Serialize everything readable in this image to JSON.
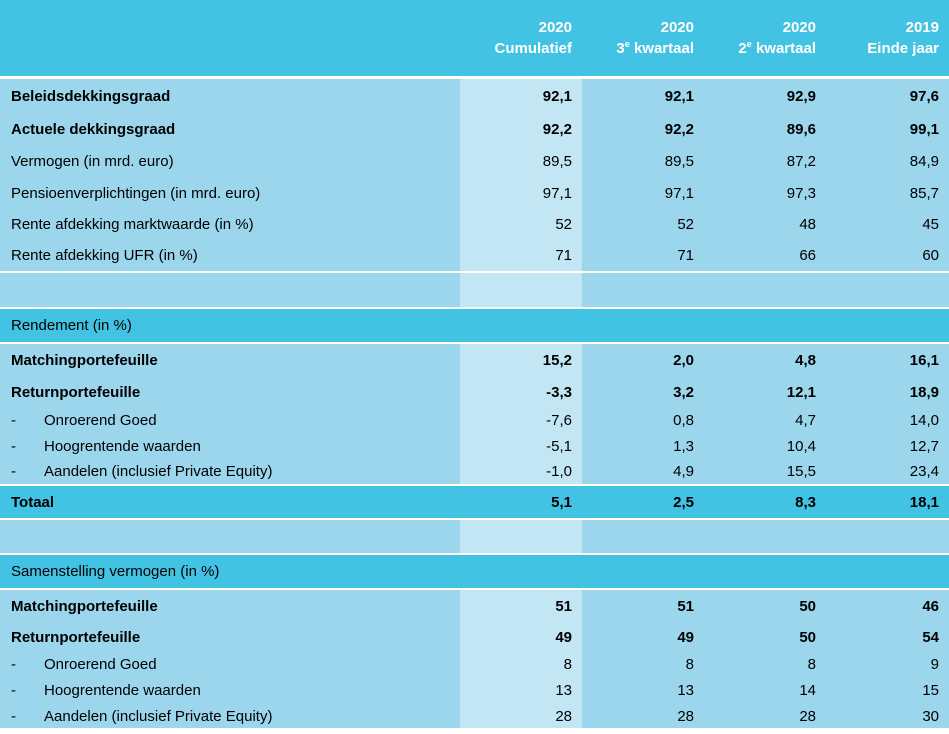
{
  "header": {
    "columns": [
      {
        "year": "2020",
        "label": "Cumulatief",
        "sup": ""
      },
      {
        "pre": "3",
        "year": "2020",
        "sup": "e",
        "label": " kwartaal"
      },
      {
        "pre": "2",
        "year": "2020",
        "sup": "e",
        "label": " kwartaal"
      },
      {
        "year": "2019",
        "label": "Einde jaar",
        "sup": ""
      }
    ]
  },
  "group1": {
    "rows": [
      {
        "label": "Beleidsdekkingsgraad",
        "values": [
          "92,1",
          "92,1",
          "92,9",
          "97,6"
        ]
      },
      {
        "label": "Actuele dekkingsgraad",
        "values": [
          "92,2",
          "92,2",
          "89,6",
          "99,1"
        ]
      },
      {
        "label": "Vermogen (in mrd. euro)",
        "values": [
          "89,5",
          "89,5",
          "87,2",
          "84,9"
        ]
      },
      {
        "label": "Pensioenverplichtingen (in mrd. euro)",
        "values": [
          "97,1",
          "97,1",
          "97,3",
          "85,7"
        ]
      },
      {
        "label": "Rente afdekking marktwaarde (in %)",
        "values": [
          "52",
          "52",
          "48",
          "45"
        ]
      },
      {
        "label": "Rente afdekking UFR (in %)",
        "values": [
          "71",
          "71",
          "66",
          "60"
        ]
      }
    ]
  },
  "rendement": {
    "title": "Rendement (in %)",
    "rows": [
      {
        "label": "Matchingportefeuille",
        "values": [
          "15,2",
          "2,0",
          "4,8",
          "16,1"
        ]
      },
      {
        "label": "Returnportefeuille",
        "values": [
          "-3,3",
          "3,2",
          "12,1",
          "18,9"
        ]
      },
      {
        "dash": "-",
        "label": "Onroerend Goed",
        "values": [
          "-7,6",
          "0,8",
          "4,7",
          "14,0"
        ]
      },
      {
        "dash": "-",
        "label": "Hoogrentende waarden",
        "values": [
          "-5,1",
          "1,3",
          "10,4",
          "12,7"
        ]
      },
      {
        "dash": "-",
        "label": "Aandelen (inclusief Private Equity)",
        "values": [
          "-1,0",
          "4,9",
          "15,5",
          "23,4"
        ]
      }
    ],
    "total": {
      "label": "Totaal",
      "values": [
        "5,1",
        "2,5",
        "8,3",
        "18,1"
      ]
    }
  },
  "samenstelling": {
    "title": "Samenstelling vermogen (in %)",
    "rows": [
      {
        "label": "Matchingportefeuille",
        "values": [
          "51",
          "51",
          "50",
          "46"
        ]
      },
      {
        "label": "Returnportefeuille",
        "values": [
          "49",
          "49",
          "50",
          "54"
        ]
      },
      {
        "dash": "-",
        "label": "Onroerend Goed",
        "values": [
          "8",
          "8",
          "8",
          "9"
        ]
      },
      {
        "dash": "-",
        "label": "Hoogrentende waarden",
        "values": [
          "13",
          "13",
          "14",
          "15"
        ]
      },
      {
        "dash": "-",
        "label": "Aandelen (inclusief Private Equity)",
        "values": [
          "28",
          "28",
          "28",
          "30"
        ]
      }
    ]
  }
}
